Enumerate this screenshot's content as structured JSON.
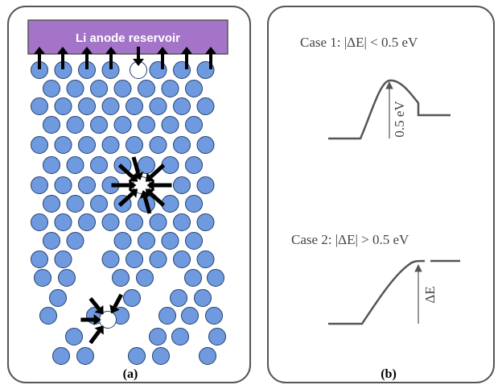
{
  "panel_a": {
    "reservoir_label": "Li anode reservoir",
    "caption": "(a)",
    "colors": {
      "reservoir_fill": "#a374c8",
      "atom_fill": "#6f9ae0",
      "atom_stroke": "#24406a",
      "vacancy_fill": "#ffffff",
      "arrow": "#000000",
      "panel_border": "#555555"
    }
  },
  "panel_b": {
    "caption": "(b)",
    "case1": {
      "label": "Case 1:  |ΔE| < 0.5 eV",
      "barrier_label": "0.5 eV"
    },
    "case2": {
      "label": "Case 2:  |ΔE| > 0.5 eV",
      "barrier_label": "ΔE"
    },
    "colors": {
      "curve": "#555555",
      "text": "#444444"
    }
  }
}
